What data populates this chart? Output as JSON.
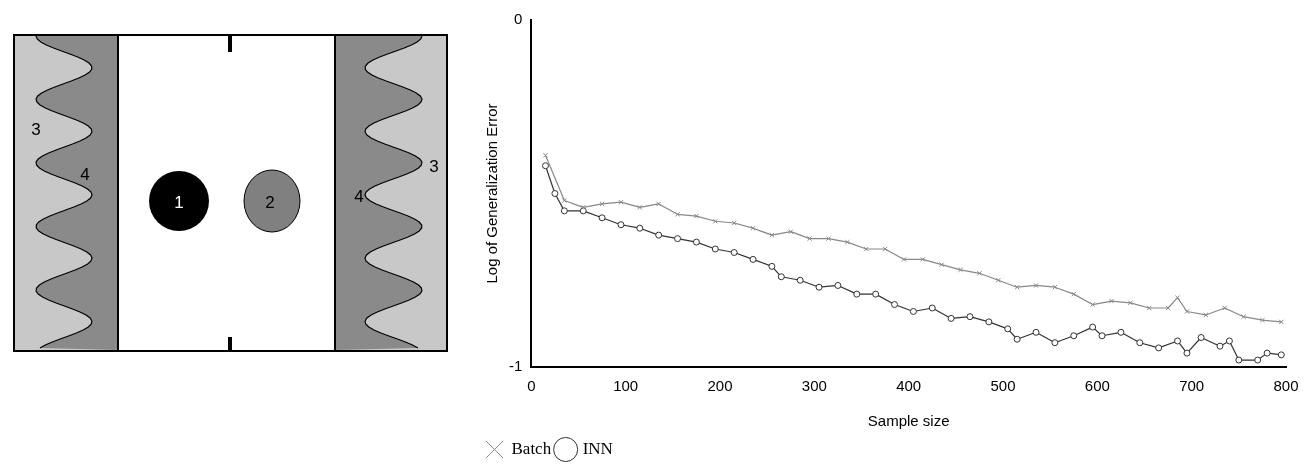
{
  "chart_data": [
    {
      "type": "other",
      "annotations": [
        "1",
        "2",
        "3",
        "4",
        "4",
        "3"
      ]
    },
    {
      "type": "line",
      "xlabel": "Sample size",
      "ylabel": "Log of Generalization Error",
      "xlim": [
        0,
        800
      ],
      "ylim": [
        -1,
        0
      ],
      "xticks": [
        0,
        100,
        200,
        300,
        400,
        500,
        600,
        700,
        800
      ],
      "yticks": [
        0,
        -1
      ],
      "grid": false,
      "legend": "bottom left",
      "series": [
        {
          "name": "Batch",
          "color": "#888888",
          "marker": "cross",
          "x": [
            15,
            35,
            55,
            75,
            95,
            115,
            135,
            155,
            175,
            195,
            215,
            235,
            255,
            275,
            295,
            315,
            335,
            355,
            375,
            395,
            415,
            435,
            455,
            475,
            495,
            515,
            535,
            555,
            575,
            595,
            615,
            635,
            655,
            675,
            685,
            695,
            715,
            735,
            755,
            775,
            795
          ],
          "values": [
            -0.39,
            -0.52,
            -0.54,
            -0.53,
            -0.525,
            -0.54,
            -0.53,
            -0.56,
            -0.565,
            -0.58,
            -0.585,
            -0.6,
            -0.62,
            -0.61,
            -0.63,
            -0.63,
            -0.64,
            -0.66,
            -0.66,
            -0.69,
            -0.69,
            -0.705,
            -0.72,
            -0.73,
            -0.75,
            -0.77,
            -0.765,
            -0.77,
            -0.79,
            -0.82,
            -0.81,
            -0.815,
            -0.83,
            -0.83,
            -0.8,
            -0.84,
            -0.85,
            -0.83,
            -0.855,
            -0.865,
            -0.87
          ]
        },
        {
          "name": "INN",
          "color": "#333333",
          "marker": "circle",
          "x": [
            15,
            25,
            35,
            55,
            75,
            95,
            115,
            135,
            155,
            175,
            195,
            215,
            235,
            255,
            265,
            285,
            305,
            325,
            345,
            365,
            385,
            405,
            425,
            445,
            465,
            485,
            505,
            515,
            535,
            555,
            575,
            595,
            605,
            625,
            645,
            665,
            685,
            695,
            710,
            730,
            740,
            750,
            770,
            780,
            795
          ],
          "values": [
            -0.42,
            -0.5,
            -0.55,
            -0.55,
            -0.57,
            -0.59,
            -0.6,
            -0.62,
            -0.63,
            -0.64,
            -0.66,
            -0.67,
            -0.69,
            -0.71,
            -0.74,
            -0.75,
            -0.77,
            -0.765,
            -0.79,
            -0.79,
            -0.82,
            -0.84,
            -0.83,
            -0.86,
            -0.855,
            -0.87,
            -0.89,
            -0.92,
            -0.9,
            -0.93,
            -0.91,
            -0.885,
            -0.91,
            -0.9,
            -0.93,
            -0.945,
            -0.925,
            -0.96,
            -0.915,
            -0.94,
            -0.925,
            -0.98,
            -0.98,
            -0.96,
            -0.965
          ]
        }
      ]
    }
  ]
}
